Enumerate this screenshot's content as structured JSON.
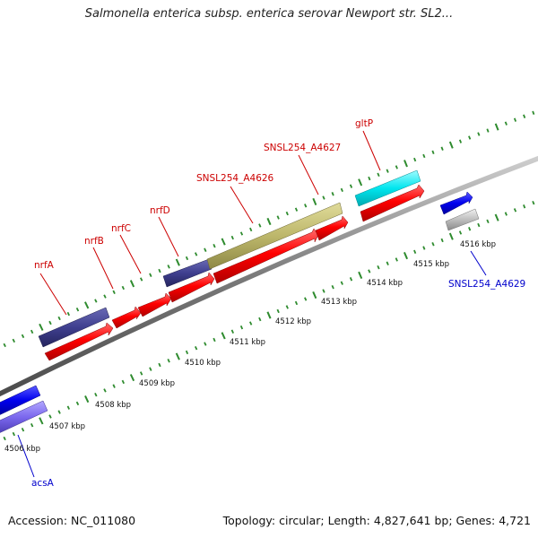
{
  "title": "Salmonella enterica subsp. enterica serovar Newport str. SL2...",
  "accession_label": "Accession: NC_011080",
  "summary_label": "Topology: circular; Length: 4,827,641 bp; Genes: 4,721",
  "colors": {
    "backbone": "#7a7a7a",
    "tick": "#2e8b2e",
    "feature_red": "#ff0000",
    "feature_navy": "#3f3f8f",
    "feature_olive": "#bdb76b",
    "feature_cyan": "#00e5ee",
    "feature_blue": "#0000ee",
    "feature_lavender": "#7b68ee",
    "feature_gray": "#bebebe",
    "label_red": "#cc0000",
    "label_blue": "#0000cc"
  },
  "scale": {
    "unit": "kbp",
    "labels": [
      "4506 kbp",
      "4507 kbp",
      "4508 kbp",
      "4509 kbp",
      "4510 kbp",
      "4511 kbp",
      "4512 kbp",
      "4513 kbp",
      "4514 kbp",
      "4515 kbp",
      "4516 kbp"
    ]
  },
  "features": [
    {
      "name": "nrfA",
      "color_key": "feature_red"
    },
    {
      "name": "nrfB",
      "color_key": "feature_red"
    },
    {
      "name": "nrfC",
      "color_key": "feature_red"
    },
    {
      "name": "nrfD",
      "color_key": "feature_red"
    },
    {
      "name": "SNSL254_A4626",
      "color_key": "feature_red"
    },
    {
      "name": "SNSL254_A4627",
      "color_key": "feature_red"
    },
    {
      "name": "gltP",
      "color_key": "feature_red"
    },
    {
      "name": "SNSL254_A4629",
      "color_key": "feature_gray"
    },
    {
      "name": "acsA",
      "color_key": "feature_blue"
    }
  ]
}
